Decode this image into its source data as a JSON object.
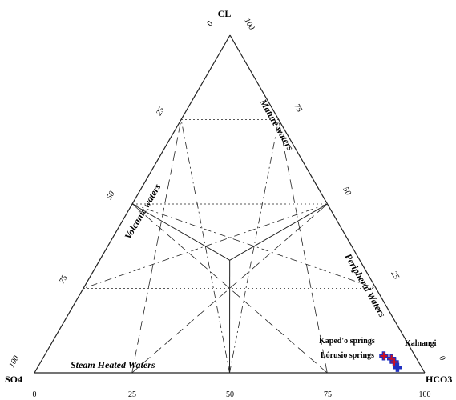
{
  "chart_data": {
    "type": "scatter",
    "subtype": "ternary",
    "title": "",
    "axes": {
      "top": "CL",
      "left": "SO4",
      "right": "HCO3"
    },
    "ticks": {
      "bottom": [
        "0",
        "25",
        "50",
        "75",
        "100"
      ],
      "left_edge": [
        "0",
        "25",
        "50",
        "75",
        "100"
      ],
      "right_edge": [
        "100",
        "75",
        "50",
        "25",
        "0"
      ]
    },
    "region_labels": [
      "Mature waters",
      "Volcanic waters",
      "Peripheral Waters",
      "Steam Heated Waters"
    ],
    "points": [
      {
        "label": "Kaped'o springs",
        "x": 89.5,
        "y": 5.0,
        "color": "#d01020"
      },
      {
        "label": "",
        "x": 91.5,
        "y": 4.2,
        "color": "#d01020"
      },
      {
        "label": "Kalnangi",
        "x": 92.2,
        "y": 3.2,
        "color": "#d01020"
      },
      {
        "label": "Lórusio springs",
        "x": 93.0,
        "y": 1.6,
        "color": "#2030c0"
      }
    ],
    "marker_colors": {
      "fill": "#d01020",
      "outline": "#2030c0"
    }
  }
}
